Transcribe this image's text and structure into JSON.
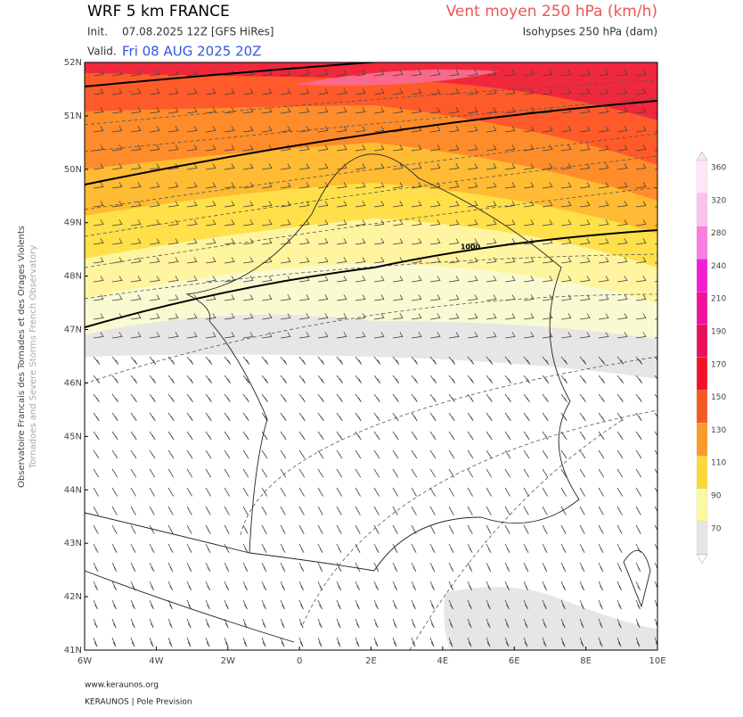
{
  "header": {
    "model": "WRF 5 km FRANCE",
    "init_label": "Init.",
    "init": "07.08.2025 12Z [GFS HiRes]",
    "valid_label": "Valid.",
    "valid": "Fri 08 AUG 2025 20Z",
    "parameter": "Vent moyen 250 hPa (km/h)",
    "contours": "Isohypses 250 hPa (dam)"
  },
  "map": {
    "lat_ticks": [
      "52N",
      "51N",
      "50N",
      "49N",
      "48N",
      "47N",
      "46N",
      "45N",
      "44N",
      "43N",
      "42N",
      "41N"
    ],
    "lon_ticks": [
      "6W",
      "4W",
      "2W",
      "0",
      "2E",
      "4E",
      "6E",
      "8E",
      "10E"
    ],
    "contour_label": "1000"
  },
  "colorbar": {
    "levels": [
      360,
      320,
      280,
      240,
      210,
      190,
      170,
      150,
      130,
      110,
      90,
      70
    ]
  },
  "side": {
    "fr": "Observatoire Francais des Tornades et des Orages Violents",
    "en": "Tornadoes and Severe Storms French Observatory"
  },
  "footer": {
    "url": "www.keraunos.org",
    "brand": "KERAUNOS | Pole Prevision"
  }
}
